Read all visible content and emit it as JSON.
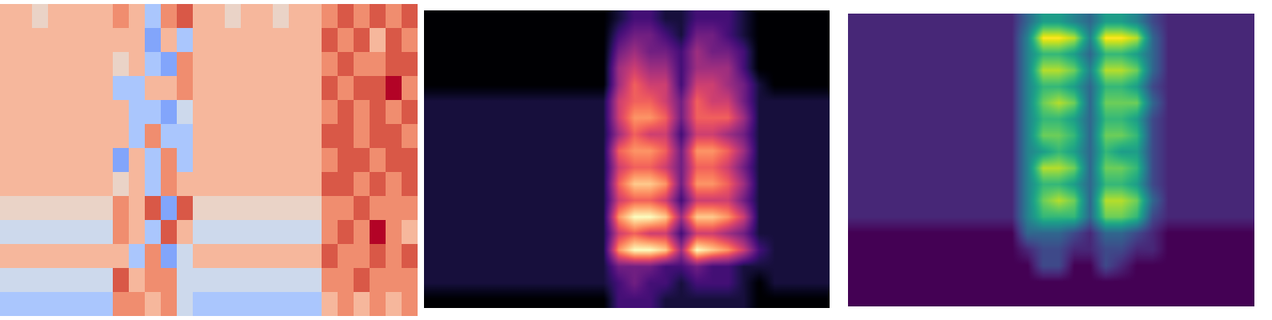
{
  "chart_data": [
    {
      "type": "heatmap",
      "color": "coolwarm",
      "tick_labels": false,
      "clim": [
        0,
        9
      ],
      "cells": [
        [
          6,
          6,
          5,
          6,
          6,
          6,
          6,
          7,
          6,
          3,
          7,
          8,
          6,
          6,
          5,
          6,
          6,
          5,
          6,
          6,
          7,
          8,
          7,
          8,
          7,
          8
        ],
        [
          6,
          6,
          6,
          6,
          6,
          6,
          6,
          6,
          6,
          2,
          6,
          3,
          6,
          6,
          6,
          6,
          6,
          6,
          6,
          6,
          8,
          7,
          8,
          6,
          8,
          7
        ],
        [
          6,
          6,
          6,
          6,
          6,
          6,
          6,
          5,
          6,
          3,
          2,
          7,
          6,
          6,
          6,
          6,
          6,
          6,
          6,
          6,
          7,
          8,
          7,
          7,
          8,
          8
        ],
        [
          6,
          6,
          6,
          6,
          6,
          6,
          6,
          3,
          3,
          6,
          6,
          7,
          6,
          6,
          6,
          6,
          6,
          6,
          6,
          6,
          8,
          7,
          8,
          8,
          9,
          7
        ],
        [
          6,
          6,
          6,
          6,
          6,
          6,
          6,
          6,
          3,
          3,
          2,
          4,
          6,
          6,
          6,
          6,
          6,
          6,
          6,
          6,
          7,
          8,
          7,
          8,
          7,
          8
        ],
        [
          6,
          6,
          6,
          6,
          6,
          6,
          6,
          6,
          3,
          7,
          3,
          3,
          6,
          6,
          6,
          6,
          6,
          6,
          6,
          6,
          8,
          8,
          7,
          8,
          8,
          7
        ],
        [
          6,
          6,
          6,
          6,
          6,
          6,
          6,
          2,
          6,
          3,
          7,
          3,
          6,
          6,
          6,
          6,
          6,
          6,
          6,
          6,
          7,
          8,
          8,
          7,
          8,
          8
        ],
        [
          6,
          6,
          6,
          6,
          6,
          6,
          6,
          5,
          6,
          3,
          7,
          6,
          6,
          6,
          6,
          6,
          6,
          6,
          6,
          6,
          8,
          8,
          7,
          8,
          7,
          8
        ],
        [
          5,
          5,
          5,
          5,
          5,
          5,
          5,
          7,
          6,
          8,
          2,
          8,
          5,
          5,
          5,
          5,
          5,
          5,
          5,
          5,
          7,
          7,
          8,
          7,
          7,
          7
        ],
        [
          4,
          4,
          4,
          4,
          4,
          4,
          4,
          7,
          6,
          3,
          8,
          6,
          4,
          4,
          4,
          4,
          4,
          4,
          4,
          4,
          7,
          8,
          7,
          9,
          7,
          6
        ],
        [
          6,
          6,
          6,
          6,
          6,
          6,
          6,
          6,
          3,
          7,
          2,
          4,
          6,
          6,
          6,
          6,
          6,
          6,
          6,
          6,
          8,
          7,
          7,
          8,
          7,
          8
        ],
        [
          4,
          4,
          4,
          4,
          4,
          4,
          4,
          8,
          6,
          7,
          7,
          4,
          4,
          4,
          4,
          4,
          4,
          4,
          4,
          4,
          7,
          7,
          8,
          7,
          7,
          7
        ],
        [
          3,
          3,
          3,
          3,
          3,
          3,
          3,
          7,
          7,
          6,
          7,
          4,
          3,
          3,
          3,
          3,
          3,
          3,
          3,
          3,
          6,
          7,
          6,
          7,
          6,
          7
        ]
      ]
    },
    {
      "type": "heatmap",
      "color": "magma",
      "tick_labels": false,
      "clim": [
        0,
        9
      ],
      "cells": [
        [
          0,
          0,
          0,
          0,
          0,
          0,
          0,
          0,
          0,
          0,
          0,
          0,
          1,
          2,
          2,
          1,
          1,
          2,
          2,
          2,
          1,
          0,
          0,
          0,
          0,
          0
        ],
        [
          0,
          0,
          0,
          0,
          0,
          0,
          0,
          0,
          0,
          0,
          0,
          0,
          2,
          3,
          3,
          2,
          1,
          3,
          3,
          2,
          1,
          0,
          0,
          0,
          0,
          0
        ],
        [
          0,
          0,
          0,
          0,
          0,
          0,
          0,
          0,
          0,
          0,
          0,
          0,
          3,
          4,
          3,
          3,
          2,
          4,
          3,
          3,
          2,
          0,
          0,
          0,
          0,
          0
        ],
        [
          0,
          0,
          0,
          0,
          0,
          0,
          0,
          0,
          0,
          0,
          0,
          0,
          4,
          5,
          4,
          4,
          2,
          4,
          4,
          4,
          2,
          0,
          0,
          0,
          0,
          0
        ],
        [
          0,
          0,
          0,
          0,
          0,
          0,
          0,
          0,
          0,
          0,
          0,
          0,
          4,
          6,
          5,
          5,
          2,
          5,
          5,
          4,
          3,
          1,
          0,
          0,
          0,
          0
        ],
        [
          1,
          1,
          1,
          1,
          1,
          1,
          1,
          1,
          1,
          1,
          1,
          1,
          5,
          6,
          6,
          5,
          3,
          6,
          5,
          5,
          3,
          1,
          1,
          1,
          1,
          1
        ],
        [
          1,
          1,
          1,
          1,
          1,
          1,
          1,
          1,
          1,
          1,
          1,
          1,
          5,
          7,
          7,
          6,
          3,
          6,
          6,
          6,
          4,
          1,
          1,
          1,
          1,
          1
        ],
        [
          1,
          1,
          1,
          1,
          1,
          1,
          1,
          1,
          1,
          1,
          1,
          1,
          4,
          6,
          5,
          5,
          2,
          5,
          5,
          4,
          3,
          1,
          1,
          1,
          1,
          1
        ],
        [
          1,
          1,
          1,
          1,
          1,
          1,
          1,
          1,
          1,
          1,
          1,
          1,
          6,
          7,
          7,
          6,
          3,
          7,
          7,
          6,
          4,
          1,
          1,
          1,
          1,
          1
        ],
        [
          1,
          1,
          1,
          1,
          1,
          1,
          1,
          1,
          1,
          1,
          1,
          1,
          5,
          6,
          6,
          5,
          3,
          6,
          6,
          5,
          3,
          1,
          1,
          1,
          1,
          1
        ],
        [
          1,
          1,
          1,
          1,
          1,
          1,
          1,
          1,
          1,
          1,
          1,
          1,
          6,
          8,
          8,
          7,
          3,
          7,
          7,
          6,
          4,
          1,
          1,
          1,
          1,
          1
        ],
        [
          1,
          1,
          1,
          1,
          1,
          1,
          1,
          1,
          1,
          1,
          1,
          1,
          5,
          6,
          6,
          5,
          2,
          5,
          5,
          5,
          3,
          1,
          1,
          1,
          1,
          1
        ],
        [
          1,
          1,
          1,
          1,
          1,
          1,
          1,
          1,
          1,
          1,
          1,
          1,
          7,
          9,
          9,
          8,
          4,
          8,
          8,
          7,
          5,
          1,
          1,
          1,
          1,
          1
        ],
        [
          1,
          1,
          1,
          1,
          1,
          1,
          1,
          1,
          1,
          1,
          1,
          1,
          5,
          6,
          5,
          5,
          2,
          5,
          5,
          4,
          3,
          1,
          1,
          1,
          1,
          1
        ],
        [
          1,
          1,
          1,
          1,
          1,
          1,
          1,
          1,
          1,
          1,
          1,
          1,
          7,
          9,
          9,
          8,
          4,
          9,
          8,
          7,
          5,
          2,
          1,
          1,
          1,
          1
        ],
        [
          1,
          1,
          1,
          1,
          1,
          1,
          1,
          1,
          1,
          1,
          1,
          1,
          3,
          3,
          3,
          2,
          2,
          3,
          2,
          2,
          1,
          1,
          1,
          1,
          1,
          1
        ],
        [
          1,
          1,
          1,
          1,
          1,
          1,
          1,
          1,
          1,
          1,
          1,
          1,
          2,
          3,
          2,
          2,
          1,
          2,
          2,
          2,
          1,
          0,
          1,
          1,
          1,
          1
        ],
        [
          0,
          0,
          0,
          0,
          0,
          0,
          0,
          0,
          0,
          0,
          0,
          0,
          2,
          2,
          2,
          1,
          1,
          1,
          1,
          1,
          1,
          0,
          0,
          0,
          0,
          0
        ]
      ]
    },
    {
      "type": "heatmap",
      "color": "viridis",
      "tick_labels": false,
      "clim": [
        0,
        9
      ],
      "cells": [
        [
          1,
          1,
          1,
          1,
          1,
          1,
          1,
          1,
          1,
          1,
          1,
          3,
          5,
          5,
          4,
          3,
          5,
          5,
          4,
          2,
          1,
          1,
          1,
          1,
          1,
          1
        ],
        [
          1,
          1,
          1,
          1,
          1,
          1,
          1,
          1,
          1,
          1,
          1,
          4,
          9,
          9,
          8,
          4,
          9,
          9,
          8,
          3,
          1,
          1,
          1,
          1,
          1,
          1
        ],
        [
          1,
          1,
          1,
          1,
          1,
          1,
          1,
          1,
          1,
          1,
          1,
          4,
          6,
          6,
          5,
          3,
          6,
          6,
          5,
          3,
          1,
          1,
          1,
          1,
          1,
          1
        ],
        [
          1,
          1,
          1,
          1,
          1,
          1,
          1,
          1,
          1,
          1,
          1,
          4,
          8,
          8,
          7,
          4,
          8,
          8,
          7,
          3,
          1,
          1,
          1,
          1,
          1,
          1
        ],
        [
          1,
          1,
          1,
          1,
          1,
          1,
          1,
          1,
          1,
          1,
          1,
          4,
          6,
          6,
          5,
          3,
          6,
          6,
          5,
          2,
          1,
          1,
          1,
          1,
          1,
          1
        ],
        [
          1,
          1,
          1,
          1,
          1,
          1,
          1,
          1,
          1,
          1,
          1,
          4,
          7,
          8,
          7,
          3,
          7,
          7,
          7,
          3,
          1,
          1,
          1,
          1,
          1,
          1
        ],
        [
          1,
          1,
          1,
          1,
          1,
          1,
          1,
          1,
          1,
          1,
          1,
          4,
          6,
          6,
          5,
          3,
          6,
          6,
          5,
          2,
          1,
          1,
          1,
          1,
          1,
          1
        ],
        [
          1,
          1,
          1,
          1,
          1,
          1,
          1,
          1,
          1,
          1,
          1,
          4,
          7,
          7,
          6,
          3,
          7,
          7,
          6,
          2,
          1,
          1,
          1,
          1,
          1,
          1
        ],
        [
          1,
          1,
          1,
          1,
          1,
          1,
          1,
          1,
          1,
          1,
          1,
          4,
          5,
          6,
          5,
          3,
          6,
          5,
          5,
          2,
          1,
          1,
          1,
          1,
          1,
          1
        ],
        [
          1,
          1,
          1,
          1,
          1,
          1,
          1,
          1,
          1,
          1,
          1,
          4,
          8,
          8,
          7,
          3,
          7,
          7,
          6,
          2,
          1,
          1,
          1,
          1,
          1,
          1
        ],
        [
          1,
          1,
          1,
          1,
          1,
          1,
          1,
          1,
          1,
          1,
          1,
          4,
          6,
          6,
          5,
          3,
          6,
          6,
          5,
          2,
          1,
          1,
          1,
          1,
          1,
          1
        ],
        [
          1,
          1,
          1,
          1,
          1,
          1,
          1,
          1,
          1,
          1,
          1,
          4,
          7,
          8,
          7,
          3,
          8,
          8,
          7,
          3,
          1,
          1,
          1,
          1,
          1,
          1
        ],
        [
          1,
          1,
          1,
          1,
          1,
          1,
          1,
          1,
          1,
          1,
          1,
          4,
          6,
          6,
          6,
          3,
          7,
          7,
          6,
          2,
          1,
          1,
          1,
          1,
          1,
          1
        ],
        [
          0,
          0,
          0,
          0,
          0,
          0,
          0,
          0,
          0,
          0,
          0,
          3,
          3,
          3,
          2,
          1,
          3,
          3,
          2,
          1,
          0,
          0,
          0,
          0,
          0,
          0
        ],
        [
          0,
          0,
          0,
          0,
          0,
          0,
          0,
          0,
          0,
          0,
          0,
          1,
          2,
          2,
          1,
          1,
          2,
          2,
          1,
          1,
          0,
          0,
          0,
          0,
          0,
          0
        ],
        [
          0,
          0,
          0,
          0,
          0,
          0,
          0,
          0,
          0,
          0,
          0,
          0,
          2,
          2,
          0,
          0,
          2,
          1,
          0,
          0,
          0,
          0,
          0,
          0,
          0,
          0
        ],
        [
          0,
          0,
          0,
          0,
          0,
          0,
          0,
          0,
          0,
          0,
          0,
          0,
          0,
          0,
          0,
          0,
          0,
          0,
          0,
          0,
          0,
          0,
          0,
          0,
          0,
          0
        ],
        [
          0,
          0,
          0,
          0,
          0,
          0,
          0,
          0,
          0,
          0,
          0,
          0,
          0,
          0,
          0,
          0,
          0,
          0,
          0,
          0,
          0,
          0,
          0,
          0,
          0,
          0
        ]
      ]
    }
  ]
}
